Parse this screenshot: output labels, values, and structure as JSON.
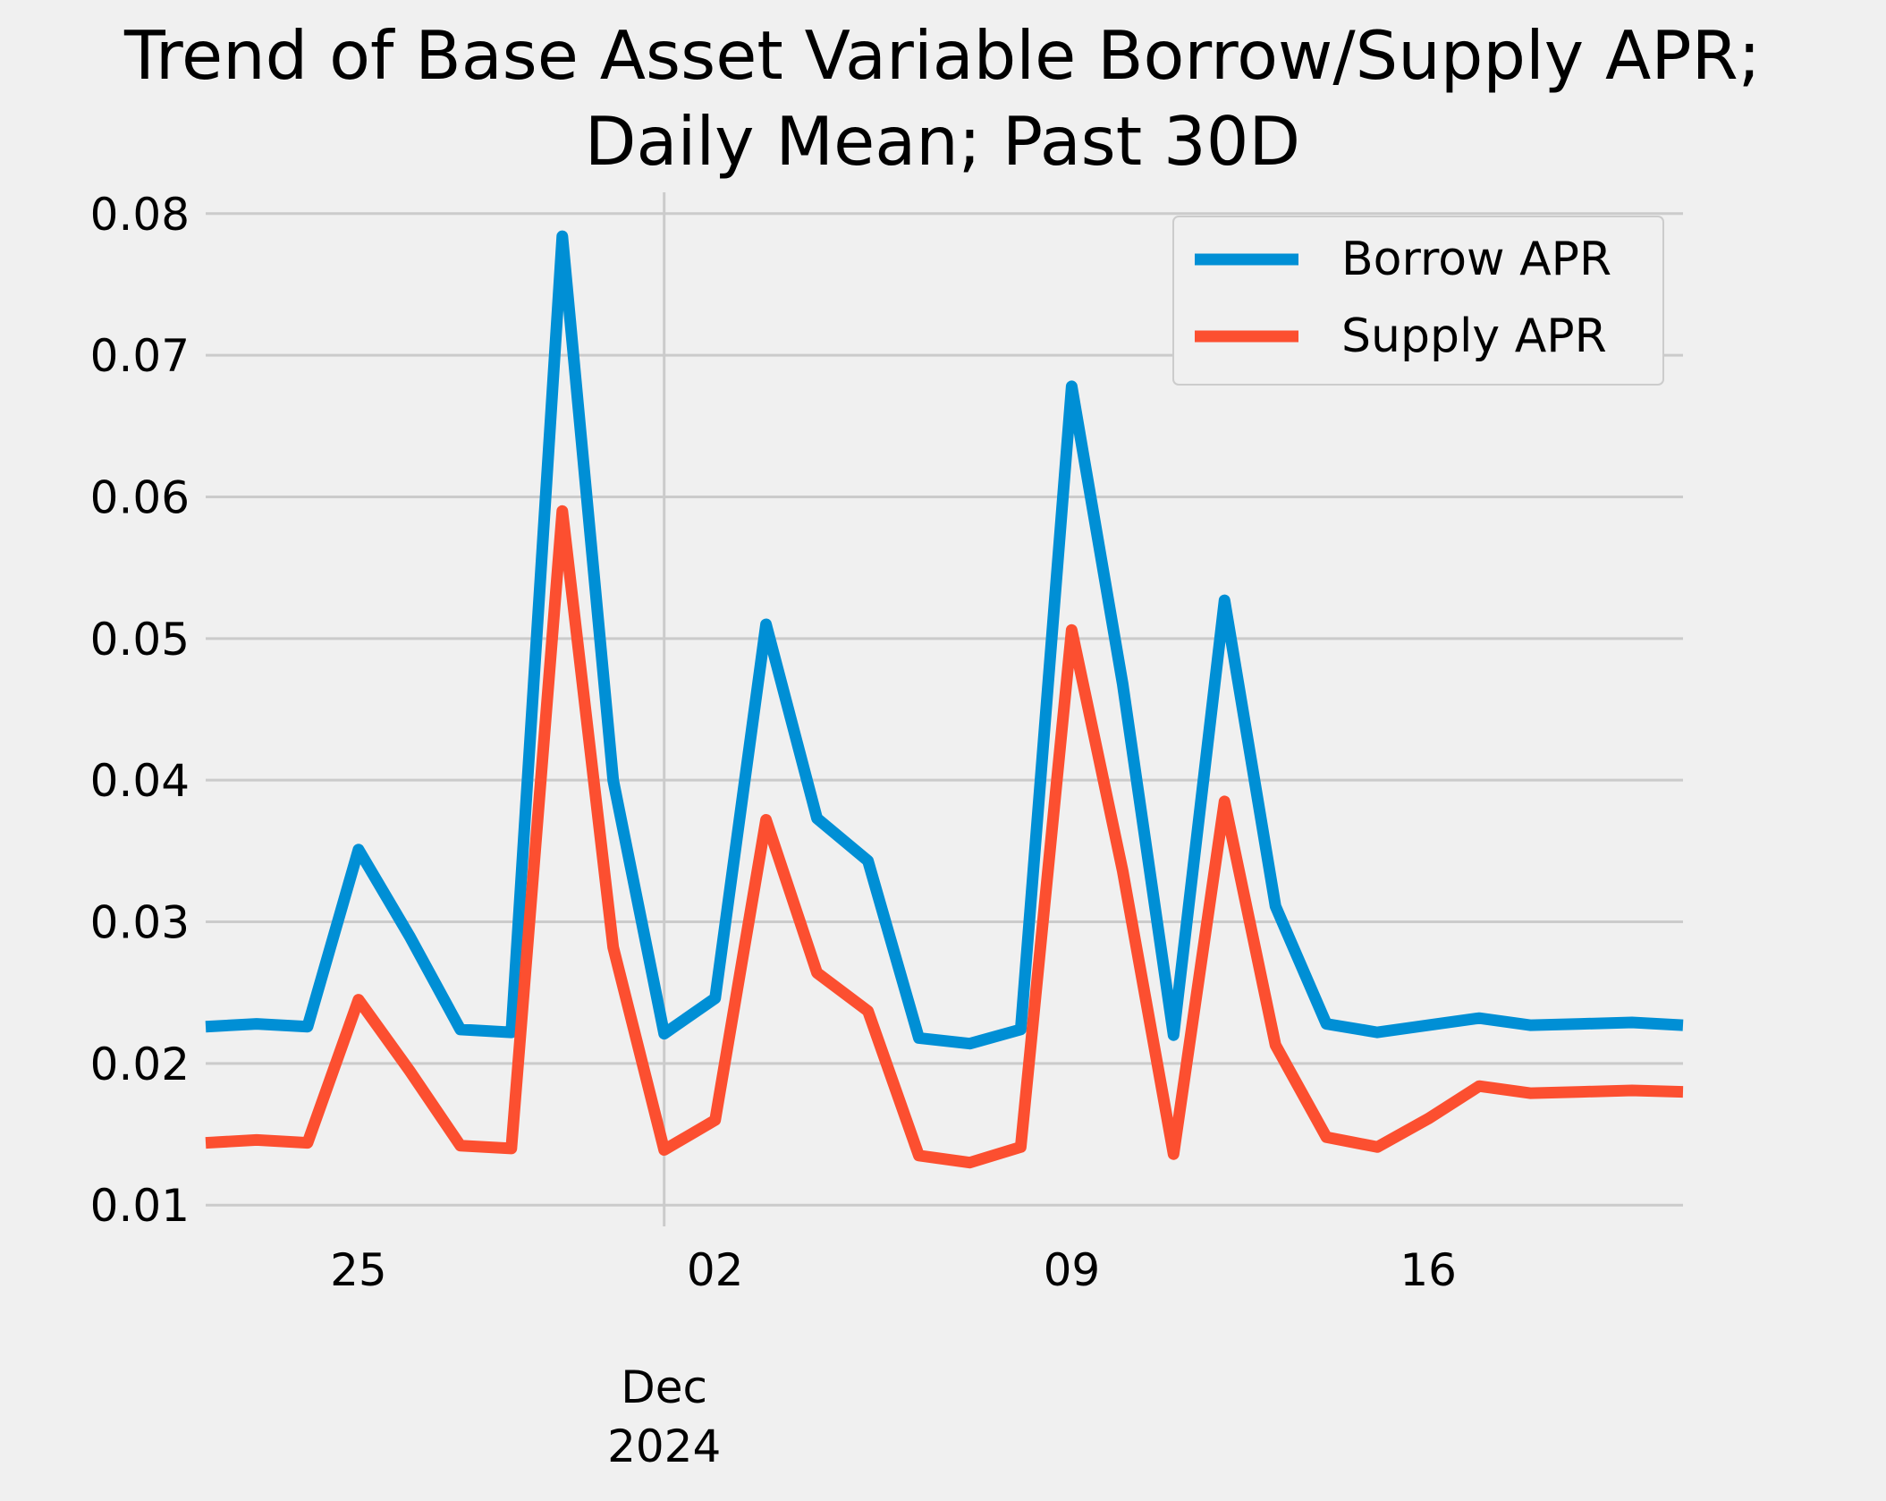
{
  "chart_data": {
    "type": "line",
    "title_line1": "Trend of Base Asset Variable Borrow/Supply APR;",
    "title_line2": "Daily Mean; Past 30D",
    "x": [
      "2024-11-22",
      "2024-11-23",
      "2024-11-24",
      "2024-11-25",
      "2024-11-26",
      "2024-11-27",
      "2024-11-28",
      "2024-11-29",
      "2024-11-30",
      "2024-12-01",
      "2024-12-02",
      "2024-12-03",
      "2024-12-04",
      "2024-12-05",
      "2024-12-06",
      "2024-12-07",
      "2024-12-08",
      "2024-12-09",
      "2024-12-10",
      "2024-12-11",
      "2024-12-12",
      "2024-12-13",
      "2024-12-14",
      "2024-12-15",
      "2024-12-16",
      "2024-12-17",
      "2024-12-18",
      "2024-12-19",
      "2024-12-20",
      "2024-12-21"
    ],
    "series": [
      {
        "name": "Borrow APR",
        "color": "#008fd5",
        "values": [
          0.0226,
          0.0228,
          0.0226,
          0.0351,
          0.029,
          0.0224,
          0.0222,
          0.0784,
          0.04,
          0.0221,
          0.0246,
          0.051,
          0.0373,
          0.0343,
          0.0218,
          0.0214,
          0.0224,
          0.0678,
          0.0468,
          0.022,
          0.0527,
          0.0311,
          0.0228,
          0.0222,
          0.0227,
          0.0232,
          0.0227,
          0.0228,
          0.0229,
          0.0227
        ]
      },
      {
        "name": "Supply APR",
        "color": "#fc4f30",
        "values": [
          0.0144,
          0.0146,
          0.0144,
          0.0245,
          0.0195,
          0.0142,
          0.014,
          0.059,
          0.0282,
          0.0139,
          0.016,
          0.0372,
          0.0264,
          0.0237,
          0.0135,
          0.013,
          0.0141,
          0.0506,
          0.0336,
          0.0136,
          0.0385,
          0.0213,
          0.0148,
          0.0141,
          0.0161,
          0.0184,
          0.0179,
          0.018,
          0.0181,
          0.018
        ]
      }
    ],
    "ylim": [
      0.0085,
      0.0815
    ],
    "xlim": [
      "2024-11-22",
      "2024-12-21"
    ],
    "yticks": [
      "0.01",
      "0.02",
      "0.03",
      "0.04",
      "0.05",
      "0.06",
      "0.07",
      "0.08"
    ],
    "xticks": [
      {
        "date": "2024-11-25",
        "label": "25"
      },
      {
        "date": "2024-12-02",
        "label": "02"
      },
      {
        "date": "2024-12-09",
        "label": "09"
      },
      {
        "date": "2024-12-16",
        "label": "16"
      }
    ],
    "major_xtick": {
      "date": "2024-12-01",
      "month": "Dec",
      "year": "2024"
    },
    "grid": true,
    "legend_position": "top-right",
    "background_color": "#f0f0f0",
    "grid_color": "#cbcbcb"
  }
}
